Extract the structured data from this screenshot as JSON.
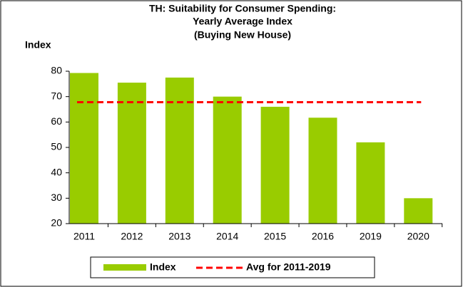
{
  "chart_data": {
    "type": "bar",
    "title": [
      "TH: Suitability for Consumer Spending:",
      "Yearly Average Index",
      "(Buying New House)"
    ],
    "y_label": "Index",
    "categories": [
      "2011",
      "2012",
      "2013",
      "2014",
      "2015",
      "2016",
      "2019",
      "2020"
    ],
    "series": [
      {
        "name": "Index",
        "color": "#99cc00",
        "values": [
          79.3,
          75.5,
          77.5,
          70,
          66,
          61.7,
          52,
          30
        ]
      },
      {
        "name": "Avg for 2011-2019",
        "color": "#ff0000",
        "type": "line",
        "dashed": true,
        "value": 67.8
      }
    ],
    "ylim": [
      20,
      80
    ],
    "yticks": [
      20,
      30,
      40,
      50,
      60,
      70,
      80
    ],
    "grid": false
  }
}
